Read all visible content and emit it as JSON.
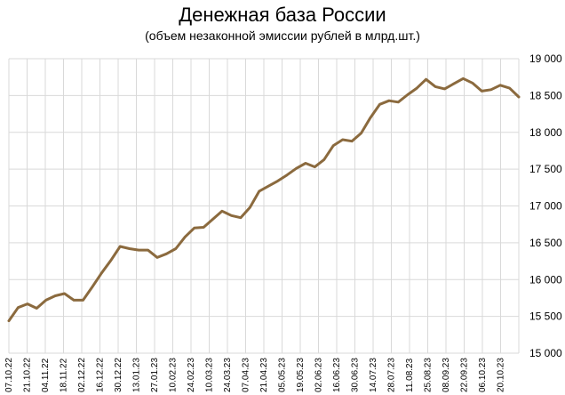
{
  "chart_data": {
    "type": "line",
    "title": "Денежная база России",
    "subtitle": "(объем незаконной эмиссии рублей в млрд.шт.)",
    "xlabel": "",
    "ylabel": "",
    "ylim": [
      15000,
      19000
    ],
    "yticks": [
      "15 000",
      "15 500",
      "16 000",
      "16 500",
      "17 000",
      "17 500",
      "18 000",
      "18 500",
      "19 000"
    ],
    "grid": true,
    "line_color": "#8b6a3e",
    "xtick_labels": [
      "07.10.22",
      "21.10.22",
      "04.11.22",
      "18.11.22",
      "02.12.22",
      "16.12.22",
      "30.12.22",
      "13.01.23",
      "27.01.23",
      "10.02.23",
      "24.02.23",
      "10.03.23",
      "24.03.23",
      "07.04.23",
      "21.04.23",
      "05.05.23",
      "19.05.23",
      "02.06.23",
      "16.06.23",
      "30.06.23",
      "14.07.23",
      "28.07.23",
      "11.08.23",
      "25.08.23",
      "08.09.23",
      "22.09.23",
      "06.10.23",
      "20.10.23"
    ],
    "series": [
      {
        "values": [
          15440,
          15620,
          15670,
          15610,
          15720,
          15780,
          15810,
          15720,
          15720,
          15900,
          16090,
          16260,
          16450,
          16420,
          16400,
          16400,
          16300,
          16350,
          16420,
          16580,
          16700,
          16710,
          16820,
          16930,
          16870,
          16840,
          16980,
          17200,
          17270,
          17340,
          17420,
          17510,
          17580,
          17530,
          17630,
          17820,
          17900,
          17880,
          17990,
          18200,
          18380,
          18430,
          18410,
          18510,
          18600,
          18720,
          18620,
          18590,
          18660,
          18730,
          18670,
          18560,
          18580,
          18640,
          18600,
          18480
        ]
      }
    ]
  }
}
